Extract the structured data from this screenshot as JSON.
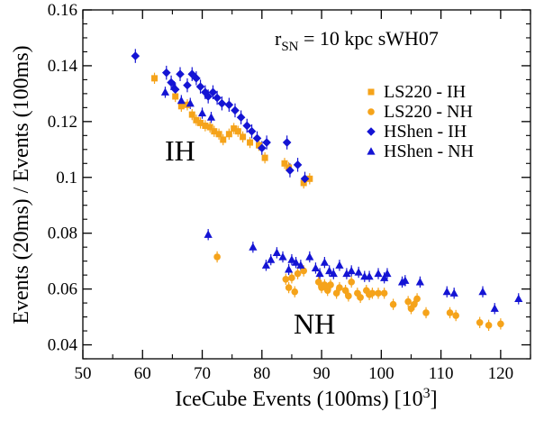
{
  "chart_data": {
    "type": "scatter",
    "xlabel": "IceCube Events (100ms) [10",
    "xlabel_sup": "3",
    "xlabel_close": "]",
    "ylabel": "Events (20ms) / Events (100ms)",
    "xlim": [
      50,
      125
    ],
    "ylim": [
      0.035,
      0.16
    ],
    "x_ticks": [
      50,
      60,
      70,
      80,
      90,
      100,
      110,
      120
    ],
    "x_tick_labels": [
      "50",
      "60",
      "70",
      "80",
      "90",
      "100",
      "110",
      "120"
    ],
    "y_ticks": [
      0.04,
      0.06,
      0.08,
      0.1,
      0.12,
      0.14,
      0.16
    ],
    "y_tick_labels": [
      "0.04",
      "0.06",
      "0.08",
      "0.1",
      "0.12",
      "0.14",
      "0.16"
    ],
    "grid": false,
    "legend_position": "right",
    "annotation": {
      "main": "r",
      "sub": "SN",
      "rest": " = 10 kpc   sWH07"
    },
    "region_labels": [
      {
        "text": "IH",
        "x": 71,
        "y": 0.109
      },
      {
        "text": "NH",
        "x": 99,
        "y": 0.044
      }
    ],
    "series": [
      {
        "name": "LS220 - IH",
        "color": "#f5a31a",
        "marker": "square",
        "error": 0.002,
        "points": [
          [
            62,
            0.1355
          ],
          [
            65.5,
            0.129
          ],
          [
            66.5,
            0.1255
          ],
          [
            67.5,
            0.126
          ],
          [
            68.3,
            0.1225
          ],
          [
            69,
            0.1205
          ],
          [
            69.7,
            0.1195
          ],
          [
            70.5,
            0.1185
          ],
          [
            71.3,
            0.118
          ],
          [
            72,
            0.1165
          ],
          [
            72.8,
            0.1155
          ],
          [
            73.5,
            0.1135
          ],
          [
            74.5,
            0.1155
          ],
          [
            75.3,
            0.1175
          ],
          [
            76,
            0.1165
          ],
          [
            76.8,
            0.1145
          ],
          [
            78,
            0.1125
          ],
          [
            79.5,
            0.1115
          ],
          [
            80.5,
            0.107
          ],
          [
            83.8,
            0.105
          ],
          [
            84.5,
            0.1035
          ],
          [
            87,
            0.098
          ],
          [
            88,
            0.0995
          ]
        ]
      },
      {
        "name": "LS220 - NH",
        "color": "#f5a31a",
        "marker": "circle",
        "error": 0.002,
        "points": [
          [
            72.5,
            0.0715
          ],
          [
            84,
            0.0635
          ],
          [
            84.5,
            0.0605
          ],
          [
            85,
            0.064
          ],
          [
            85.5,
            0.059
          ],
          [
            86,
            0.0655
          ],
          [
            87,
            0.0665
          ],
          [
            89.5,
            0.0625
          ],
          [
            90,
            0.0605
          ],
          [
            90.5,
            0.0615
          ],
          [
            91,
            0.0595
          ],
          [
            91.5,
            0.0615
          ],
          [
            92.5,
            0.0585
          ],
          [
            93,
            0.0605
          ],
          [
            94,
            0.0595
          ],
          [
            94.5,
            0.0575
          ],
          [
            95,
            0.0625
          ],
          [
            96,
            0.0585
          ],
          [
            96.5,
            0.057
          ],
          [
            97.5,
            0.0595
          ],
          [
            98,
            0.058
          ],
          [
            98.5,
            0.0585
          ],
          [
            99.5,
            0.0585
          ],
          [
            100.5,
            0.0585
          ],
          [
            102,
            0.0545
          ],
          [
            104.5,
            0.0555
          ],
          [
            105,
            0.053
          ],
          [
            105.5,
            0.0545
          ],
          [
            106,
            0.0565
          ],
          [
            107.5,
            0.0515
          ],
          [
            111.5,
            0.0515
          ],
          [
            112.5,
            0.0505
          ],
          [
            116.5,
            0.048
          ],
          [
            118,
            0.047
          ],
          [
            120,
            0.0475
          ]
        ]
      },
      {
        "name": "HShen - IH",
        "color": "#1414d4",
        "marker": "diamond",
        "error": 0.0025,
        "points": [
          [
            58.8,
            0.1435
          ],
          [
            64,
            0.1375
          ],
          [
            64.8,
            0.134
          ],
          [
            65.5,
            0.1315
          ],
          [
            66.3,
            0.137
          ],
          [
            67.5,
            0.133
          ],
          [
            68.3,
            0.137
          ],
          [
            69,
            0.1355
          ],
          [
            69.7,
            0.1325
          ],
          [
            70.5,
            0.1305
          ],
          [
            71,
            0.129
          ],
          [
            71.8,
            0.1305
          ],
          [
            72.5,
            0.1285
          ],
          [
            73.3,
            0.1265
          ],
          [
            74.5,
            0.126
          ],
          [
            75.5,
            0.124
          ],
          [
            76.5,
            0.1215
          ],
          [
            77.5,
            0.1185
          ],
          [
            78.3,
            0.1165
          ],
          [
            79.2,
            0.114
          ],
          [
            80,
            0.1105
          ],
          [
            80.8,
            0.1125
          ],
          [
            84.2,
            0.1125
          ],
          [
            84.7,
            0.1025
          ],
          [
            86,
            0.1045
          ],
          [
            87.2,
            0.0995
          ]
        ]
      },
      {
        "name": "HShen - NH",
        "color": "#1414d4",
        "marker": "triangle",
        "error": 0.002,
        "points": [
          [
            63.8,
            0.1305
          ],
          [
            65.3,
            0.1325
          ],
          [
            66.5,
            0.1275
          ],
          [
            68,
            0.1265
          ],
          [
            70,
            0.123
          ],
          [
            71.5,
            0.1215
          ],
          [
            71,
            0.0795
          ],
          [
            78.5,
            0.075
          ],
          [
            80.7,
            0.0685
          ],
          [
            81.5,
            0.0705
          ],
          [
            82.5,
            0.073
          ],
          [
            83.5,
            0.0715
          ],
          [
            84.5,
            0.067
          ],
          [
            85,
            0.0705
          ],
          [
            85.7,
            0.0695
          ],
          [
            86.5,
            0.0685
          ],
          [
            88,
            0.0715
          ],
          [
            89,
            0.0675
          ],
          [
            89.7,
            0.0655
          ],
          [
            90.5,
            0.0695
          ],
          [
            91.3,
            0.0665
          ],
          [
            92,
            0.0655
          ],
          [
            93,
            0.0685
          ],
          [
            94.2,
            0.0655
          ],
          [
            95,
            0.0665
          ],
          [
            96.2,
            0.066
          ],
          [
            97.2,
            0.0645
          ],
          [
            98,
            0.0645
          ],
          [
            99.5,
            0.0655
          ],
          [
            100.5,
            0.064
          ],
          [
            101,
            0.0655
          ],
          [
            103.5,
            0.0625
          ],
          [
            104,
            0.063
          ],
          [
            106.5,
            0.0625
          ],
          [
            111,
            0.059
          ],
          [
            112.2,
            0.0585
          ],
          [
            117,
            0.059
          ],
          [
            119,
            0.053
          ],
          [
            123,
            0.0565
          ]
        ]
      }
    ]
  }
}
